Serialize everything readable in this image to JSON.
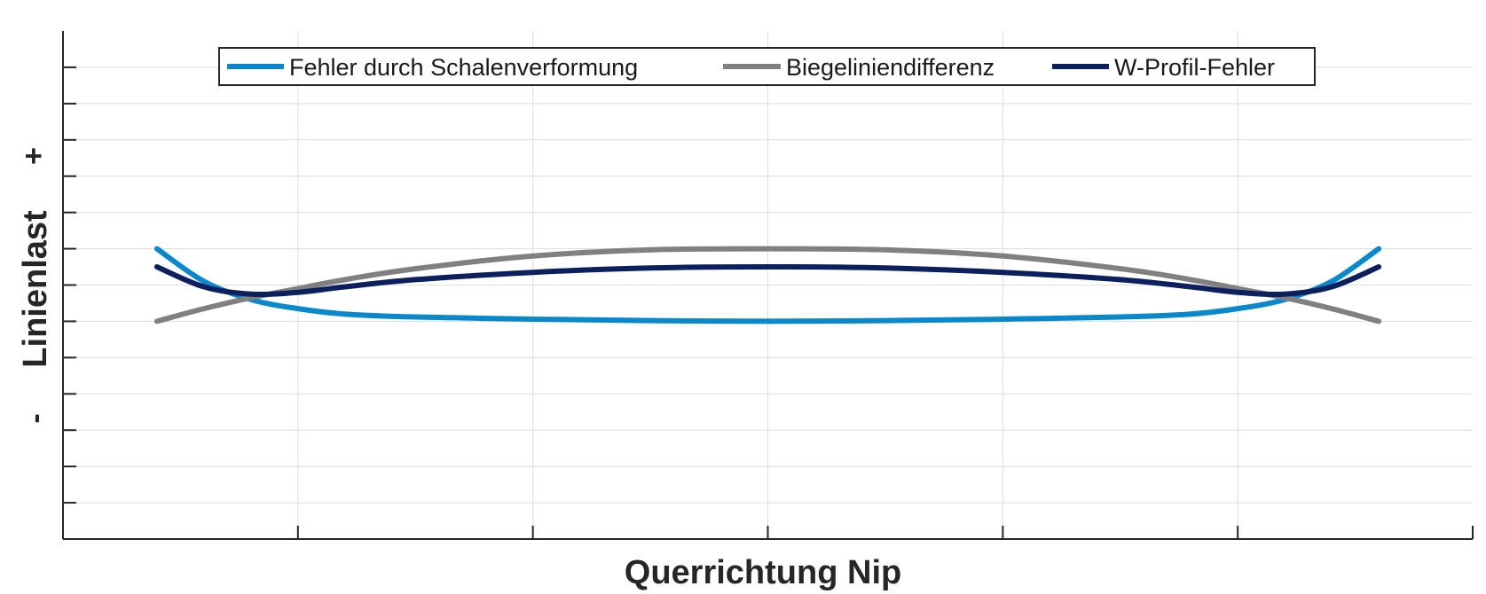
{
  "chart_data": {
    "type": "line",
    "xlabel": "Querrichtung Nip",
    "ylabel": "Linienlast",
    "ylabel_plus": "+",
    "ylabel_minus": "-",
    "xlim": [
      0,
      6
    ],
    "ylim": [
      0,
      14
    ],
    "grid": true,
    "legend_position": "top",
    "x": [
      0.4,
      0.6,
      0.8,
      1.0,
      1.2,
      1.5,
      2.0,
      2.5,
      3.0,
      3.5,
      4.0,
      4.5,
      4.8,
      5.0,
      5.2,
      5.4,
      5.6
    ],
    "series": [
      {
        "name": "Fehler durch Schalenverformung",
        "color": "#0a88cc",
        "values": [
          8.0,
          7.1,
          6.6,
          6.35,
          6.2,
          6.12,
          6.06,
          6.02,
          6.0,
          6.02,
          6.06,
          6.12,
          6.2,
          6.35,
          6.6,
          7.1,
          8.0
        ]
      },
      {
        "name": "Biegeliniendifferenz",
        "color": "#808080",
        "values": [
          6.0,
          6.35,
          6.65,
          6.9,
          7.15,
          7.45,
          7.8,
          7.97,
          8.0,
          7.97,
          7.8,
          7.45,
          7.15,
          6.9,
          6.65,
          6.35,
          6.0
        ]
      },
      {
        "name": "W-Profil-Fehler",
        "color": "#0c1f5e",
        "values": [
          7.5,
          6.95,
          6.75,
          6.8,
          6.95,
          7.15,
          7.35,
          7.47,
          7.5,
          7.47,
          7.35,
          7.15,
          6.95,
          6.8,
          6.75,
          6.95,
          7.5
        ]
      }
    ]
  }
}
